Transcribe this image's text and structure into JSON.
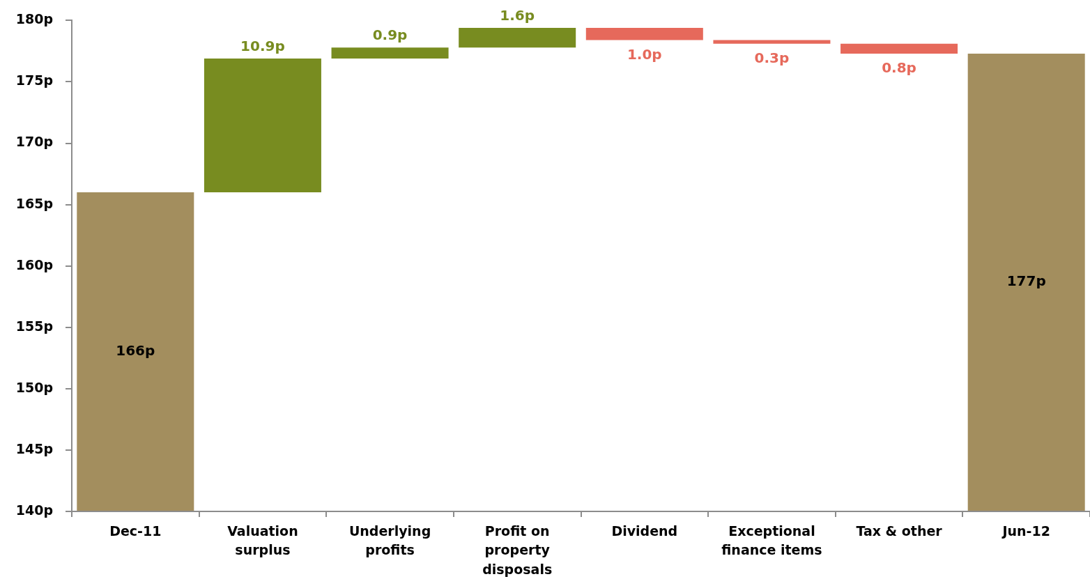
{
  "chart_data": {
    "type": "bar",
    "categories": [
      "Dec-11",
      "Valuation surplus",
      "Underlying profits",
      "Profit on property disposals",
      "Dividend",
      "Exceptional finance items",
      "Tax & other",
      "Jun-12"
    ],
    "values": [
      166,
      10.9,
      0.9,
      1.6,
      -1.0,
      -0.3,
      -0.8,
      177.3
    ],
    "base": [
      null,
      166,
      176.9,
      177.8,
      179.4,
      178.4,
      178.1,
      null
    ],
    "colors": [
      "#a38e5e",
      "#788c20",
      "#788c20",
      "#788c20",
      "#e6695b",
      "#e6695b",
      "#e6695b",
      "#a38e5e"
    ],
    "value_labels": [
      "166p",
      "10.9p",
      "0.9p",
      "1.6p",
      "1.0p",
      "0.3p",
      "0.8p",
      "177p"
    ],
    "ylim": [
      140,
      180
    ],
    "yticks": [
      {
        "value": 140,
        "label": "140p"
      },
      {
        "value": 145,
        "label": "145p"
      },
      {
        "value": 150,
        "label": "150p"
      },
      {
        "value": 155,
        "label": "155p"
      },
      {
        "value": 160,
        "label": "160p"
      },
      {
        "value": 165,
        "label": "165p"
      },
      {
        "value": 170,
        "label": "170p"
      },
      {
        "value": 175,
        "label": "175p"
      },
      {
        "value": 180,
        "label": "180p"
      }
    ]
  }
}
